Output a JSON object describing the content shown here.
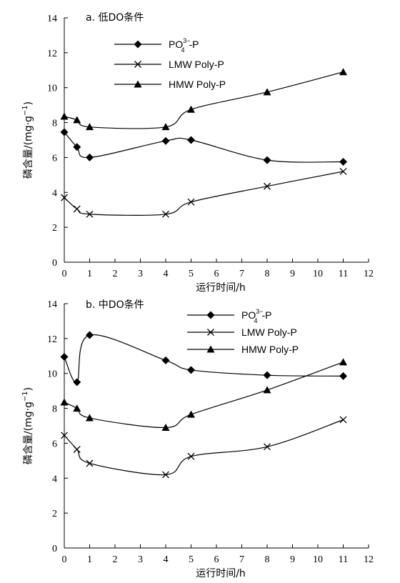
{
  "chart_data": [
    {
      "type": "line",
      "title": "a. 低DO条件",
      "xlabel": "运行时间/h",
      "ylabel": "磷含量/(mg·g",
      "ylabel_sup": "−1",
      "ylabel_end": ")",
      "xlim": [
        0,
        12
      ],
      "ylim": [
        0,
        14
      ],
      "xticks": [
        "0",
        "1",
        "2",
        "3",
        "4",
        "5",
        "6",
        "7",
        "8",
        "9",
        "10",
        "11",
        "12"
      ],
      "yticks": [
        "0",
        "2",
        "4",
        "6",
        "8",
        "10",
        "12",
        "14"
      ],
      "legend_position": "top-center",
      "series": [
        {
          "name": "PO",
          "name_sub": "4",
          "name_sup": "3−",
          "name_rest": "-P",
          "marker": "diamond",
          "x": [
            0,
            0.5,
            1,
            4,
            5,
            8,
            11
          ],
          "y": [
            7.45,
            6.6,
            6.0,
            6.95,
            7.0,
            5.85,
            5.75
          ]
        },
        {
          "name": "LMW Poly-P",
          "marker": "x",
          "x": [
            0,
            0.5,
            1,
            4,
            5,
            8,
            11
          ],
          "y": [
            3.7,
            3.05,
            2.75,
            2.75,
            3.45,
            4.35,
            5.2
          ]
        },
        {
          "name": "HMW Poly-P",
          "marker": "triangle",
          "x": [
            0,
            0.5,
            1,
            4,
            5,
            8,
            11
          ],
          "y": [
            8.35,
            8.15,
            7.75,
            7.75,
            8.75,
            9.75,
            10.9
          ]
        }
      ]
    },
    {
      "type": "line",
      "title": "b. 中DO条件",
      "xlabel": "运行时间/h",
      "ylabel": "磷含量/(mg·g",
      "ylabel_sup": "−1",
      "ylabel_end": ")",
      "xlim": [
        0,
        12
      ],
      "ylim": [
        0,
        14
      ],
      "xticks": [
        "0",
        "1",
        "2",
        "3",
        "4",
        "5",
        "6",
        "7",
        "8",
        "9",
        "10",
        "11",
        "12"
      ],
      "yticks": [
        "0",
        "2",
        "4",
        "6",
        "8",
        "10",
        "12",
        "14"
      ],
      "legend_position": "top-right",
      "series": [
        {
          "name": "PO",
          "name_sub": "4",
          "name_sup": "3−",
          "name_rest": "-P",
          "marker": "diamond",
          "x": [
            0,
            0.5,
            1,
            4,
            5,
            8,
            11
          ],
          "y": [
            10.95,
            9.5,
            12.2,
            10.75,
            10.2,
            9.9,
            9.85
          ]
        },
        {
          "name": "LMW Poly-P",
          "marker": "x",
          "x": [
            0,
            0.5,
            1,
            4,
            5,
            8,
            11
          ],
          "y": [
            6.45,
            5.65,
            4.85,
            4.2,
            5.25,
            5.8,
            7.35
          ]
        },
        {
          "name": "HMW Poly-P",
          "marker": "triangle",
          "x": [
            0,
            0.5,
            1,
            4,
            5,
            8,
            11
          ],
          "y": [
            8.35,
            8.0,
            7.45,
            6.9,
            7.65,
            9.05,
            10.65
          ]
        }
      ]
    }
  ]
}
